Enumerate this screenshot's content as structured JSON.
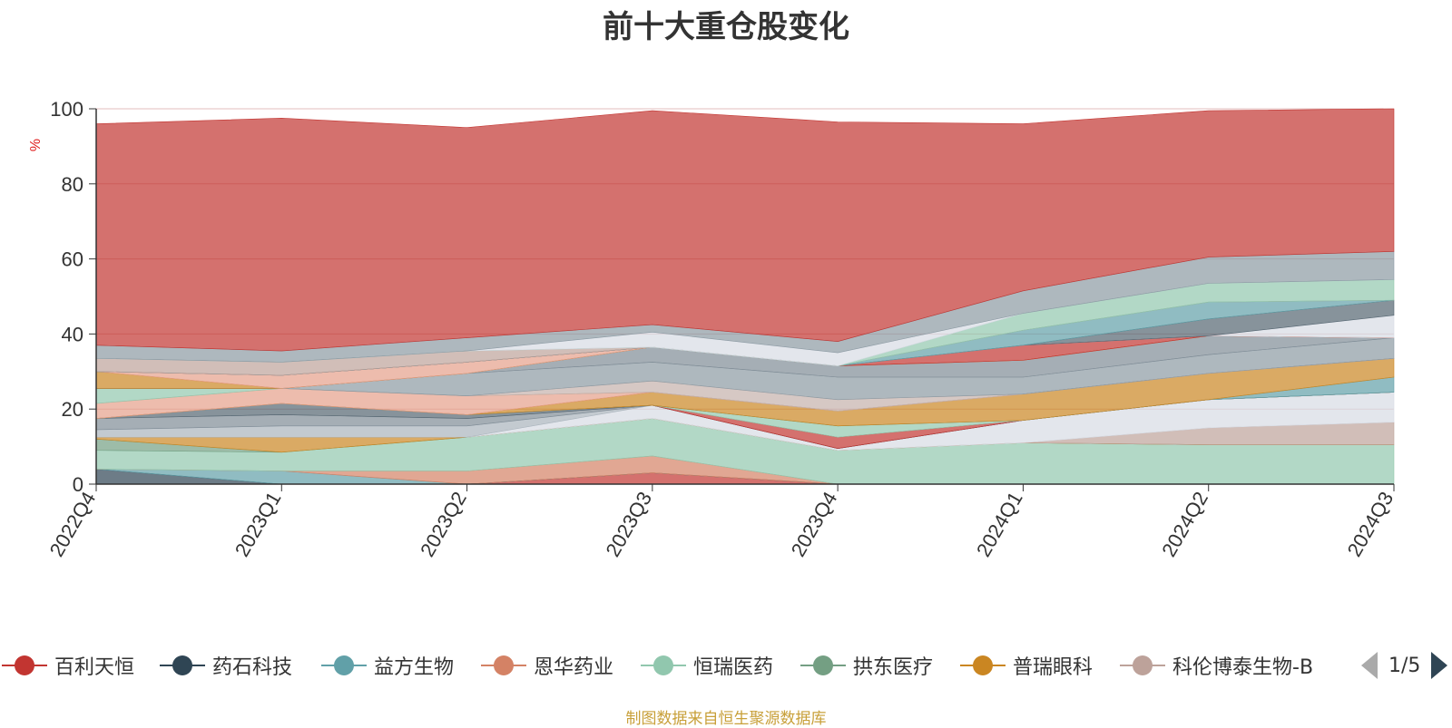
{
  "chart_data": {
    "type": "area",
    "stacked": true,
    "title": "前十大重仓股变化",
    "xlabel": "",
    "ylabel": "%",
    "ylim": [
      0,
      100
    ],
    "yticks": [
      0,
      20,
      40,
      60,
      80,
      100
    ],
    "grid": true,
    "legend_position": "bottom",
    "categories": [
      "2022Q4",
      "2023Q1",
      "2023Q2",
      "2023Q3",
      "2023Q4",
      "2024Q1",
      "2024Q2",
      "2024Q3"
    ],
    "series": [
      {
        "name": "百利天恒",
        "color": "#c23531",
        "values": [
          0,
          0,
          0,
          3,
          0,
          0,
          0,
          0
        ]
      },
      {
        "name": "药石科技",
        "color": "#2f4554",
        "values": [
          4,
          0,
          0,
          0,
          0,
          0,
          0,
          0
        ]
      },
      {
        "name": "益方生物",
        "color": "#61a0a8",
        "values": [
          0,
          3.5,
          0,
          0,
          0,
          0,
          0,
          0
        ]
      },
      {
        "name": "恩华药业",
        "color": "#d48265",
        "values": [
          0,
          0,
          3.5,
          4.5,
          0,
          0,
          0,
          0
        ]
      },
      {
        "name": "恒瑞医药",
        "color": "#91c7ae",
        "values": [
          5,
          5,
          9,
          10,
          9,
          11,
          10.5,
          10.5
        ]
      },
      {
        "name": "拱东医疗",
        "color": "#749f83",
        "values": [
          3,
          0,
          0,
          0,
          0,
          0,
          0,
          0
        ]
      },
      {
        "name": "普瑞眼科",
        "color": "#ca8622",
        "values": [
          0.5,
          4,
          0,
          0,
          0,
          0,
          0,
          0
        ]
      },
      {
        "name": "科伦博泰生物-B",
        "color": "#bda29a",
        "values": [
          0,
          0,
          0,
          0,
          0,
          0,
          4.5,
          6
        ]
      },
      {
        "name": "",
        "color": "#d7dce4",
        "values": [
          0,
          0,
          0,
          3.5,
          0.5,
          6,
          7.5,
          8
        ]
      },
      {
        "name": "",
        "color": "#aab4bc",
        "values": [
          2,
          3,
          3,
          0,
          0,
          0,
          0,
          0
        ]
      },
      {
        "name": "",
        "color": "#7f8c96",
        "values": [
          3,
          3,
          2,
          0,
          0,
          0,
          0,
          0
        ]
      },
      {
        "name": "",
        "color": "#546570",
        "values": [
          0,
          3,
          1,
          0,
          0,
          0,
          0,
          0
        ]
      },
      {
        "name": "",
        "color": "#c23531",
        "values": [
          0,
          0,
          0,
          0,
          3,
          0,
          0,
          0
        ]
      },
      {
        "name": "",
        "color": "#91c7ae",
        "values": [
          0,
          0,
          0,
          0,
          3,
          0,
          0,
          0
        ]
      },
      {
        "name": "",
        "color": "#61a0a8",
        "values": [
          0,
          0,
          0,
          0,
          0,
          0,
          0,
          4
        ]
      },
      {
        "name": "",
        "color": "#ca8622",
        "values": [
          0,
          0,
          0,
          3.5,
          4,
          7,
          7,
          5
        ]
      },
      {
        "name": "",
        "color": "#e6a08a",
        "values": [
          4,
          4,
          5,
          0,
          0,
          0,
          0,
          0
        ]
      },
      {
        "name": "",
        "color": "#91c7ae",
        "values": [
          4,
          0,
          0,
          0,
          0,
          0,
          0,
          0
        ]
      },
      {
        "name": "",
        "color": "#e6a08a",
        "values": [
          0,
          0,
          0,
          0,
          0,
          0,
          0,
          0
        ]
      },
      {
        "name": "",
        "color": "#c4b0ab",
        "values": [
          0,
          0,
          0,
          3,
          3,
          0,
          0,
          0
        ]
      },
      {
        "name": "",
        "color": "#8c9aa3",
        "values": [
          0,
          0,
          6,
          5,
          6,
          4.5,
          5,
          5.5
        ]
      },
      {
        "name": "",
        "color": "#7f8c96",
        "values": [
          0,
          0,
          0,
          4,
          3,
          4.5,
          5,
          0
        ]
      },
      {
        "name": "",
        "color": "#ca8622",
        "values": [
          4.5,
          0,
          0,
          0,
          0,
          0,
          0,
          0
        ]
      },
      {
        "name": "",
        "color": "#e6a08a",
        "values": [
          0,
          3.5,
          3,
          0,
          0,
          0,
          0,
          0
        ]
      },
      {
        "name": "",
        "color": "#c23531",
        "values": [
          0,
          0,
          0,
          0,
          0,
          4,
          0,
          0
        ]
      },
      {
        "name": "",
        "color": "#d7dce4",
        "values": [
          0,
          0,
          0,
          0,
          0,
          0,
          0,
          6
        ]
      },
      {
        "name": "",
        "color": "#546570",
        "values": [
          0,
          0,
          0,
          0,
          0,
          0,
          4.5,
          4
        ]
      },
      {
        "name": "",
        "color": "#61a0a8",
        "values": [
          0,
          0,
          0,
          0,
          0,
          4,
          4.5,
          0
        ]
      },
      {
        "name": "",
        "color": "#bda29a",
        "values": [
          3.5,
          3.5,
          3,
          0,
          0,
          0,
          0,
          0
        ]
      },
      {
        "name": "",
        "color": "#91c7ae",
        "values": [
          0,
          0,
          0,
          0,
          0,
          4.5,
          5,
          5.5
        ]
      },
      {
        "name": "",
        "color": "#d7dce4",
        "values": [
          0,
          0,
          0,
          4,
          3.5,
          0,
          0,
          0
        ]
      },
      {
        "name": "",
        "color": "#8c9aa3",
        "values": [
          3.5,
          3,
          3.5,
          2,
          3,
          6,
          7,
          7.5
        ]
      },
      {
        "name": "",
        "color": "#c23531",
        "values": [
          59,
          62,
          56,
          57,
          58.5,
          44.5,
          39,
          38
        ]
      }
    ]
  },
  "legend": {
    "items": [
      {
        "label": "百利天恒",
        "color": "#c23531"
      },
      {
        "label": "药石科技",
        "color": "#2f4554"
      },
      {
        "label": "益方生物",
        "color": "#61a0a8"
      },
      {
        "label": "恩华药业",
        "color": "#d48265"
      },
      {
        "label": "恒瑞医药",
        "color": "#91c7ae"
      },
      {
        "label": "拱东医疗",
        "color": "#749f83"
      },
      {
        "label": "普瑞眼科",
        "color": "#ca8622"
      },
      {
        "label": "科伦博泰生物-B",
        "color": "#bda29a"
      }
    ],
    "page": "1/5"
  },
  "footer": {
    "source": "制图数据来自恒生聚源数据库"
  }
}
